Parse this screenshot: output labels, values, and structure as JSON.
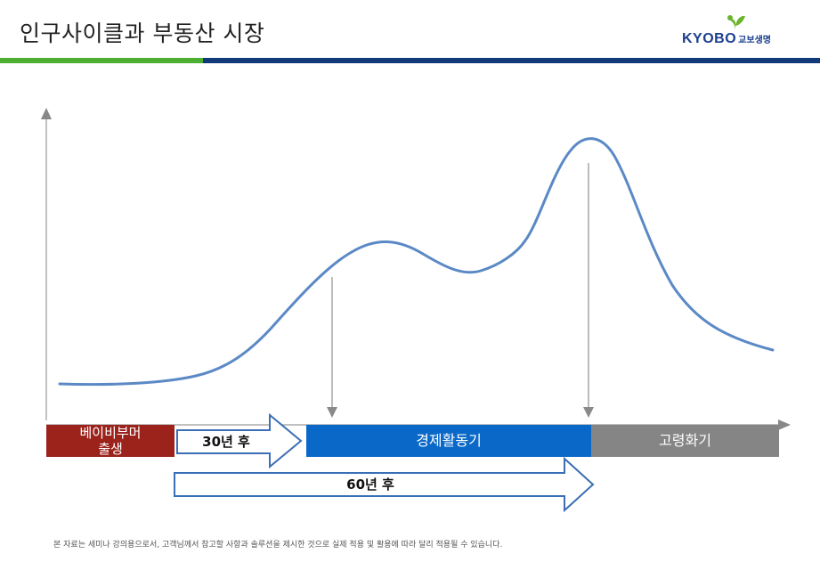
{
  "header": {
    "title": "인구사이클과 부동산 시장",
    "logo": {
      "brand": "KYOBO",
      "sub": "교보생명",
      "colors": {
        "brand": "#1b3f8f",
        "leaf": "#6ab42d"
      }
    },
    "bar_colors": {
      "left": "#4caf32",
      "right": "#123a7a"
    }
  },
  "diagram": {
    "curve_color": "#5b89c5",
    "segments": [
      {
        "id": "babyboomer",
        "label_lines": [
          "베이비부머",
          "출생"
        ],
        "color": "#9b231c"
      },
      {
        "id": "economic",
        "label": "경제활동기",
        "color": "#0a69c8"
      },
      {
        "id": "aging",
        "label": "고령화기",
        "color": "#858585"
      }
    ],
    "arrows": [
      {
        "id": "arrow-30",
        "label": "30년 후"
      },
      {
        "id": "arrow-60",
        "label": "60년 후"
      }
    ]
  },
  "footnote": "본 자료는 세미나 강의용으로서, 고객님께서 참고할 사항과 솔루션을 제시한 것으로 실제 적용 및 활용에 따라 달리 적용될 수 있습니다."
}
